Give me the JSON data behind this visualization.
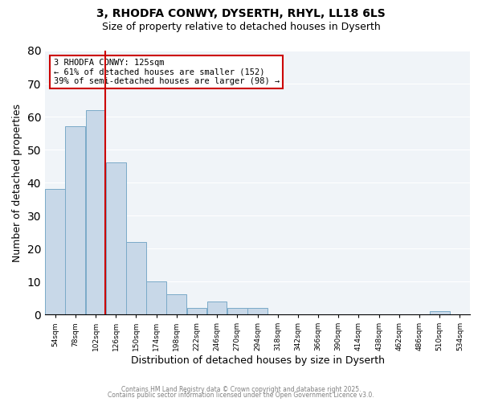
{
  "title": "3, RHODFA CONWY, DYSERTH, RHYL, LL18 6LS",
  "subtitle": "Size of property relative to detached houses in Dyserth",
  "xlabel": "Distribution of detached houses by size in Dyserth",
  "ylabel": "Number of detached properties",
  "bar_color": "#c8d8e8",
  "bar_edge_color": "#7aaac8",
  "background_color": "#f0f4f8",
  "bins": [
    54,
    78,
    102,
    126,
    150,
    174,
    198,
    222,
    246,
    270,
    294,
    318,
    342,
    366,
    390,
    414,
    438,
    462,
    486,
    510,
    534
  ],
  "counts": [
    38,
    57,
    62,
    46,
    22,
    10,
    6,
    2,
    4,
    2,
    2,
    0,
    0,
    0,
    0,
    0,
    0,
    0,
    0,
    1,
    0
  ],
  "ylim": [
    0,
    80
  ],
  "yticks": [
    0,
    10,
    20,
    30,
    40,
    50,
    60,
    70,
    80
  ],
  "vline_x": 125,
  "vline_color": "#cc0000",
  "annotation_title": "3 RHODFA CONWY: 125sqm",
  "annotation_line1": "← 61% of detached houses are smaller (152)",
  "annotation_line2": "39% of semi-detached houses are larger (98) →",
  "annotation_box_color": "#cc0000",
  "tick_labels": [
    "54sqm",
    "78sqm",
    "102sqm",
    "126sqm",
    "150sqm",
    "174sqm",
    "198sqm",
    "222sqm",
    "246sqm",
    "270sqm",
    "294sqm",
    "318sqm",
    "342sqm",
    "366sqm",
    "390sqm",
    "414sqm",
    "438sqm",
    "462sqm",
    "486sqm",
    "510sqm",
    "534sqm"
  ],
  "footer1": "Contains HM Land Registry data © Crown copyright and database right 2025.",
  "footer2": "Contains public sector information licensed under the Open Government Licence v3.0."
}
